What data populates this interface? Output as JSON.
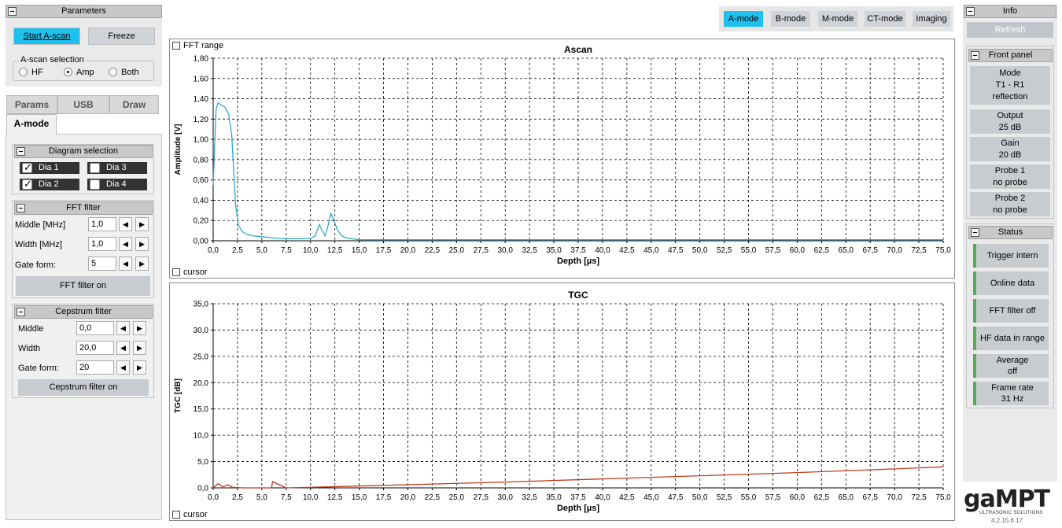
{
  "left": {
    "params_title": "Parameters",
    "start_label": "Start A-scan",
    "freeze_label": "Freeze",
    "ascan_sel_label": "A-scan selection",
    "radio": {
      "hf": "HF",
      "amp": "Amp",
      "both": "Both"
    },
    "tabs": {
      "params": "Params",
      "usb": "USB",
      "draw": "Draw",
      "amode": "A-mode"
    },
    "diagram_title": "Diagram selection",
    "dias": [
      "Dia 1",
      "Dia 3",
      "Dia 2",
      "Dia 4"
    ],
    "fft_title": "FFT filter",
    "fft_middle_label": "Middle [MHz]",
    "fft_middle": "1,0",
    "fft_width_label": "Width [MHz]",
    "fft_width": "1,0",
    "fft_gate_label": "Gate form:",
    "fft_gate": "5",
    "fft_button": "FFT filter on",
    "cep_title": "Cepstrum filter",
    "cep_middle_label": "Middle",
    "cep_middle": "0,0",
    "cep_width_label": "Width",
    "cep_width": "20,0",
    "cep_gate_label": "Gate form:",
    "cep_gate": "20",
    "cep_button": "Cepstrum filter on"
  },
  "modes": {
    "a": "A-mode",
    "b": "B-mode",
    "m": "M-mode",
    "ct": "CT-mode",
    "img": "Imaging"
  },
  "colors": {
    "accent": "#1ec0ee",
    "ascan_line": "#2ea7d0",
    "tgc_line": "#c0391b",
    "status_green": "#4caf50"
  },
  "right": {
    "info_title": "Info",
    "refresh": "Refresh",
    "front_panel_title": "Front panel",
    "mode_label": "Mode",
    "mode_val1": "T1 - R1",
    "mode_val2": "reflection",
    "output_label": "Output",
    "output_val": "25 dB",
    "gain_label": "Gain",
    "gain_val": "20 dB",
    "probe1_label": "Probe 1",
    "probe1_val": "no probe",
    "probe2_label": "Probe 2",
    "probe2_val": "no probe",
    "status_title": "Status",
    "trigger": "Trigger intern",
    "online": "Online data",
    "fft_off": "FFT filter off",
    "hf_range": "HF data in range",
    "average_label": "Average",
    "average_val": "off",
    "frame_label": "Frame rate",
    "frame_val": "31 Hz",
    "logo": "gaMPT",
    "logo_sub": "ULTRASONIC SOLUTIONS",
    "version": "4.2.15.6.17"
  },
  "plot_misc": {
    "fft_range": "FFT range",
    "cursor": "cursor"
  },
  "chart_data": [
    {
      "type": "line",
      "title": "Ascan",
      "xlabel": "Depth [µs]",
      "ylabel": "Amplitude [V]",
      "xlim": [
        0,
        75
      ],
      "ylim": [
        0,
        1.8
      ],
      "xticks": [
        "0,0",
        "2,5",
        "5,0",
        "7,5",
        "10,0",
        "12,5",
        "15,0",
        "17,5",
        "20,0",
        "22,5",
        "25,0",
        "27,5",
        "30,0",
        "32,5",
        "35,0",
        "37,5",
        "40,0",
        "42,5",
        "45,0",
        "47,5",
        "50,0",
        "52,5",
        "55,0",
        "57,5",
        "60,0",
        "62,5",
        "65,0",
        "67,5",
        "70,0",
        "72,5",
        "75,0"
      ],
      "yticks": [
        "0,00",
        "0,20",
        "0,40",
        "0,60",
        "0,80",
        "1,00",
        "1,20",
        "1,40",
        "1,60",
        "1,80"
      ],
      "grid": true,
      "x": [
        0,
        0.3,
        0.5,
        0.8,
        1.2,
        1.6,
        1.9,
        2.1,
        2.3,
        2.6,
        3,
        3.5,
        4,
        5,
        6,
        7,
        8,
        9,
        10,
        10.5,
        10.9,
        11.2,
        11.5,
        11.8,
        12.1,
        12.4,
        12.8,
        13.2,
        13.6,
        14.2,
        15,
        20,
        30,
        40,
        50,
        60,
        70,
        75
      ],
      "y": [
        0.55,
        1.3,
        1.36,
        1.34,
        1.32,
        1.25,
        1.05,
        0.7,
        0.35,
        0.15,
        0.09,
        0.06,
        0.05,
        0.04,
        0.03,
        0.02,
        0.02,
        0.02,
        0.02,
        0.05,
        0.16,
        0.1,
        0.05,
        0.15,
        0.27,
        0.2,
        0.1,
        0.05,
        0.03,
        0.02,
        0.01,
        0.01,
        0.01,
        0.01,
        0.01,
        0.01,
        0.01,
        0.01
      ]
    },
    {
      "type": "line",
      "title": "TGC",
      "xlabel": "Depth [µs]",
      "ylabel": "TGC [dB]",
      "xlim": [
        0,
        75
      ],
      "ylim": [
        0,
        35
      ],
      "xticks": [
        "0,0",
        "2,5",
        "5,0",
        "7,5",
        "10,0",
        "12,5",
        "15,0",
        "17,5",
        "20,0",
        "22,5",
        "25,0",
        "27,5",
        "30,0",
        "32,5",
        "35,0",
        "37,5",
        "40,0",
        "42,5",
        "45,0",
        "47,5",
        "50,0",
        "52,5",
        "55,0",
        "57,5",
        "60,0",
        "62,5",
        "65,0",
        "67,5",
        "70,0",
        "72,5",
        "75,0"
      ],
      "yticks": [
        "0,0",
        "5,0",
        "10,0",
        "15,0",
        "20,0",
        "25,0",
        "30,0",
        "35,0"
      ],
      "grid": true,
      "x": [
        0,
        0.5,
        1,
        1.5,
        2,
        3,
        5,
        6,
        6.1,
        7.5,
        10,
        20,
        30,
        40,
        50,
        60,
        70,
        75
      ],
      "y": [
        0,
        0.8,
        0.2,
        0.6,
        0.1,
        0.0,
        0.0,
        0.0,
        1.2,
        0.0,
        0.1,
        0.6,
        1.1,
        1.7,
        2.3,
        2.9,
        3.6,
        4.0
      ]
    }
  ]
}
